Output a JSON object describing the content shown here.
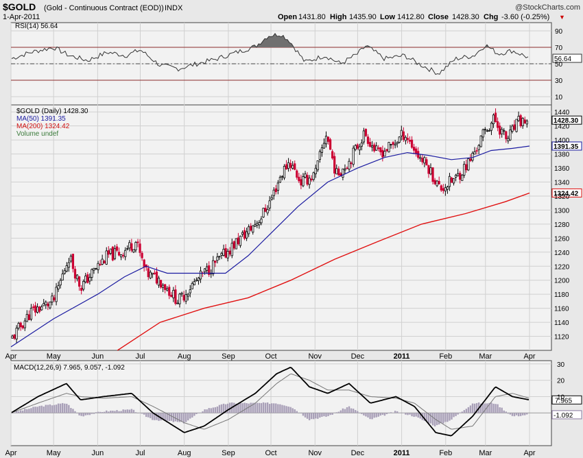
{
  "header": {
    "symbol": "$GOLD",
    "name": "(Gold - Continuous Contract (EOD))",
    "exchange": "INDX",
    "date": "1-Apr-2011",
    "copyright": "@StockCharts.com",
    "open_label": "Open",
    "open": "1431.80",
    "high_label": "High",
    "high": "1435.90",
    "low_label": "Low",
    "low": "1412.80",
    "close_label": "Close",
    "close": "1428.30",
    "chg_label": "Chg",
    "chg": "-3.60 (-0.25%)"
  },
  "colors": {
    "price_up": "#000000",
    "price_down": "#cc0033",
    "ma50": "#1a1aa0",
    "ma200": "#e01010",
    "rsi_line": "#333333",
    "rsi_fill": "#707070",
    "macd_hist": "#a9a0b8"
  },
  "chart_data": [
    {
      "type": "line",
      "panel": "rsi",
      "legend": "RSI(14) 56.64",
      "current_label": "56.64",
      "ylim": [
        0,
        100
      ],
      "yticks": [
        "90",
        "70",
        "50",
        "30",
        "10"
      ],
      "levels": [
        70,
        30
      ],
      "x": [
        "2010-04-01",
        "2010-04-15",
        "2010-05-01",
        "2010-05-12",
        "2010-05-25",
        "2010-06-08",
        "2010-06-21",
        "2010-07-01",
        "2010-07-15",
        "2010-07-28",
        "2010-08-10",
        "2010-08-24",
        "2010-09-07",
        "2010-09-20",
        "2010-09-29",
        "2010-10-08",
        "2010-10-14",
        "2010-10-25",
        "2010-11-08",
        "2010-11-19",
        "2010-12-01",
        "2010-12-07",
        "2010-12-20",
        "2011-01-03",
        "2011-01-13",
        "2011-01-27",
        "2011-02-08",
        "2011-02-21",
        "2011-03-01",
        "2011-03-10",
        "2011-03-20",
        "2011-04-01"
      ],
      "values": [
        56,
        64,
        70,
        60,
        54,
        64,
        60,
        67,
        48,
        44,
        50,
        56,
        64,
        71,
        84,
        86,
        78,
        52,
        60,
        50,
        62,
        72,
        56,
        60,
        50,
        38,
        56,
        60,
        73,
        62,
        66,
        57
      ]
    },
    {
      "type": "bar",
      "panel": "price",
      "legend": {
        "price": "$GOLD (Daily) 1428.30",
        "ma50": "MA(50) 1391.35",
        "ma200": "MA(200) 1324.42",
        "volume": "Volume undef"
      },
      "ylim": [
        1100,
        1450
      ],
      "yticks": [
        "1440",
        "1420",
        "1400",
        "1380",
        "1360",
        "1340",
        "1320",
        "1300",
        "1280",
        "1260",
        "1240",
        "1220",
        "1200",
        "1180",
        "1160",
        "1140",
        "1120"
      ],
      "current_labels": {
        "close": "1428.30",
        "ma50": "1391.35",
        "ma200": "1324.42"
      },
      "x_months": [
        "Apr",
        "May",
        "Jun",
        "Jul",
        "Aug",
        "Sep",
        "Oct",
        "Nov",
        "Dec",
        "2011",
        "Feb",
        "Mar",
        "Apr"
      ],
      "month_starts": [
        "2010-04-01",
        "2010-05-01",
        "2010-06-01",
        "2010-07-01",
        "2010-08-01",
        "2010-09-01",
        "2010-10-01",
        "2010-11-01",
        "2010-12-01",
        "2011-01-01",
        "2011-02-01",
        "2011-03-01",
        "2011-04-01"
      ],
      "series": [
        {
          "name": "$GOLD",
          "x": [
            "2010-04-01",
            "2010-04-15",
            "2010-05-01",
            "2010-05-12",
            "2010-05-20",
            "2010-06-01",
            "2010-06-08",
            "2010-06-18",
            "2010-06-28",
            "2010-07-05",
            "2010-07-15",
            "2010-07-28",
            "2010-08-05",
            "2010-08-15",
            "2010-08-26",
            "2010-09-07",
            "2010-09-15",
            "2010-09-24",
            "2010-10-01",
            "2010-10-08",
            "2010-10-14",
            "2010-10-22",
            "2010-11-01",
            "2010-11-09",
            "2010-11-16",
            "2010-11-25",
            "2010-12-06",
            "2010-12-15",
            "2010-12-24",
            "2011-01-03",
            "2011-01-12",
            "2011-01-20",
            "2011-01-28",
            "2011-02-08",
            "2011-02-18",
            "2011-02-28",
            "2011-03-07",
            "2011-03-16",
            "2011-03-24",
            "2011-04-01"
          ],
          "values": [
            1115,
            1155,
            1170,
            1235,
            1190,
            1220,
            1235,
            1240,
            1255,
            1210,
            1200,
            1170,
            1190,
            1210,
            1230,
            1255,
            1270,
            1290,
            1315,
            1350,
            1370,
            1340,
            1350,
            1410,
            1350,
            1370,
            1410,
            1380,
            1390,
            1410,
            1380,
            1360,
            1330,
            1345,
            1370,
            1410,
            1430,
            1400,
            1425,
            1428.3
          ]
        },
        {
          "name": "MA(50)",
          "x": [
            "2010-04-01",
            "2010-05-01",
            "2010-06-01",
            "2010-06-20",
            "2010-07-05",
            "2010-07-20",
            "2010-08-10",
            "2010-08-30",
            "2010-09-15",
            "2010-09-30",
            "2010-10-20",
            "2010-11-10",
            "2010-12-01",
            "2010-12-20",
            "2011-01-05",
            "2011-01-20",
            "2011-02-05",
            "2011-02-20",
            "2011-03-05",
            "2011-03-20",
            "2011-04-01"
          ],
          "values": [
            1105,
            1145,
            1180,
            1205,
            1220,
            1210,
            1210,
            1210,
            1235,
            1265,
            1305,
            1340,
            1360,
            1375,
            1382,
            1378,
            1372,
            1375,
            1385,
            1388,
            1391.35
          ]
        },
        {
          "name": "MA(200)",
          "x": [
            "2010-06-15",
            "2010-07-15",
            "2010-08-15",
            "2010-09-15",
            "2010-10-15",
            "2010-11-15",
            "2010-12-15",
            "2011-01-15",
            "2011-02-15",
            "2011-03-15",
            "2011-04-01"
          ],
          "values": [
            1100,
            1140,
            1160,
            1175,
            1200,
            1230,
            1255,
            1280,
            1295,
            1312,
            1324.42
          ]
        }
      ]
    },
    {
      "type": "line",
      "panel": "macd",
      "legend": "MACD(12,26,9) 7.965, 9.057, -1.092",
      "current_labels": {
        "macd": "7.965",
        "hist": "-1.092"
      },
      "ylim": [
        -20,
        32
      ],
      "yticks": [
        "30",
        "20",
        "10"
      ],
      "x": [
        "2010-04-01",
        "2010-04-20",
        "2010-05-10",
        "2010-05-20",
        "2010-06-05",
        "2010-06-25",
        "2010-07-10",
        "2010-08-01",
        "2010-08-15",
        "2010-09-01",
        "2010-09-20",
        "2010-10-05",
        "2010-10-15",
        "2010-10-28",
        "2010-11-10",
        "2010-11-25",
        "2010-12-10",
        "2010-12-28",
        "2011-01-10",
        "2011-01-25",
        "2011-02-05",
        "2011-02-20",
        "2011-03-08",
        "2011-03-20",
        "2011-04-01"
      ],
      "series": [
        {
          "name": "MACD",
          "values": [
            0,
            10,
            18,
            8,
            10,
            12,
            0,
            -12,
            -8,
            2,
            12,
            24,
            28,
            16,
            12,
            18,
            6,
            10,
            4,
            -12,
            -14,
            -2,
            16,
            10,
            8
          ]
        },
        {
          "name": "Signal",
          "values": [
            0,
            6,
            12,
            10,
            9,
            10,
            4,
            -6,
            -10,
            -4,
            6,
            18,
            24,
            20,
            14,
            14,
            10,
            9,
            6,
            -4,
            -10,
            -8,
            10,
            12,
            9
          ]
        },
        {
          "name": "Histogram",
          "values": [
            0,
            4,
            6,
            -2,
            1,
            2,
            -4,
            -6,
            2,
            6,
            6,
            6,
            4,
            -4,
            -2,
            4,
            -4,
            1,
            -2,
            -8,
            -4,
            6,
            6,
            -2,
            -1
          ]
        }
      ]
    }
  ]
}
